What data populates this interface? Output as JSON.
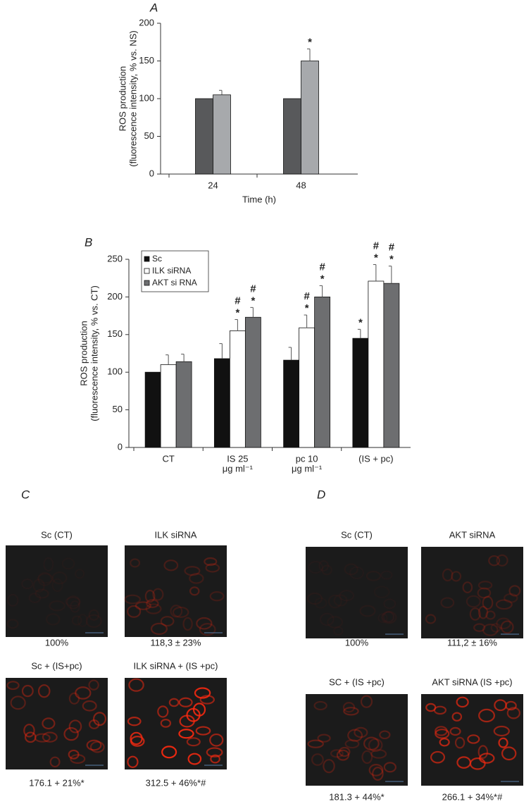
{
  "chart_data": [
    {
      "type": "bar",
      "title": "A",
      "ylabel": [
        "ROS production",
        "(fluorescence intensity, % vs. NS)"
      ],
      "xlabel": "Time (h)",
      "categories": [
        [
          "24"
        ],
        [
          "48"
        ]
      ],
      "series": [
        {
          "color": "#58595b",
          "values": [
            100,
            100
          ],
          "errors": [
            null,
            null
          ],
          "markers": [
            null,
            null
          ]
        },
        {
          "color": "#a7a9ac",
          "values": [
            105,
            150
          ],
          "errors": [
            6,
            16
          ],
          "markers": [
            null,
            [
              "*"
            ]
          ]
        }
      ],
      "ylim": [
        0,
        200
      ],
      "yticks": [
        0,
        50,
        100,
        150,
        200
      ]
    },
    {
      "type": "bar",
      "title": "B",
      "ylabel": [
        "ROS production",
        "(fluorescence intensity, % vs. CT)"
      ],
      "categories": [
        [
          "CT"
        ],
        [
          "IS 25",
          "μg ml⁻¹"
        ],
        [
          "pc 10",
          "μg ml⁻¹"
        ],
        [
          "(IS + pc)"
        ]
      ],
      "series": [
        {
          "name": "Sc",
          "color": "#111111",
          "values": [
            100,
            118,
            116,
            145
          ],
          "errors": [
            null,
            20,
            17,
            12
          ],
          "markers": [
            null,
            null,
            null,
            [
              "*"
            ]
          ]
        },
        {
          "name": "ILK siRNA",
          "color": "#ffffff",
          "values": [
            110,
            155,
            159,
            221
          ],
          "errors": [
            13,
            15,
            17,
            22
          ],
          "markers": [
            null,
            [
              "*",
              "#"
            ],
            [
              "*",
              "#"
            ],
            [
              "*",
              "#"
            ]
          ]
        },
        {
          "name": "AKT si RNA",
          "color": "#6d6e70",
          "values": [
            114,
            173,
            200,
            218
          ],
          "errors": [
            10,
            13,
            15,
            23
          ],
          "markers": [
            null,
            [
              "*",
              "#"
            ],
            [
              "*",
              "#"
            ],
            [
              "*",
              "#"
            ]
          ]
        }
      ],
      "ylim": [
        0,
        250
      ],
      "yticks": [
        0,
        50,
        100,
        150,
        200,
        250
      ],
      "legend": "top-left"
    }
  ],
  "image_panels": [
    {
      "label": "C",
      "images": [
        {
          "title": "Sc (CT)",
          "caption": "100%"
        },
        {
          "title": "ILK siRNA",
          "caption": "118,3 ± 23%"
        },
        {
          "title": "Sc + (IS+pc)",
          "caption": "176.1 + 21%*"
        },
        {
          "title": "ILK siRNA + (IS +pc)",
          "caption": "312.5 + 46%*#"
        }
      ]
    },
    {
      "label": "D",
      "images": [
        {
          "title": "Sc (CT)",
          "caption": "100%"
        },
        {
          "title": "AKT siRNA",
          "caption": "111,2 ± 16%"
        },
        {
          "title": "SC + (IS +pc)",
          "caption": "181.3 + 44%*"
        },
        {
          "title": "AKT siRNA (IS +pc)",
          "caption": "266.1 + 34%*#"
        }
      ]
    }
  ]
}
